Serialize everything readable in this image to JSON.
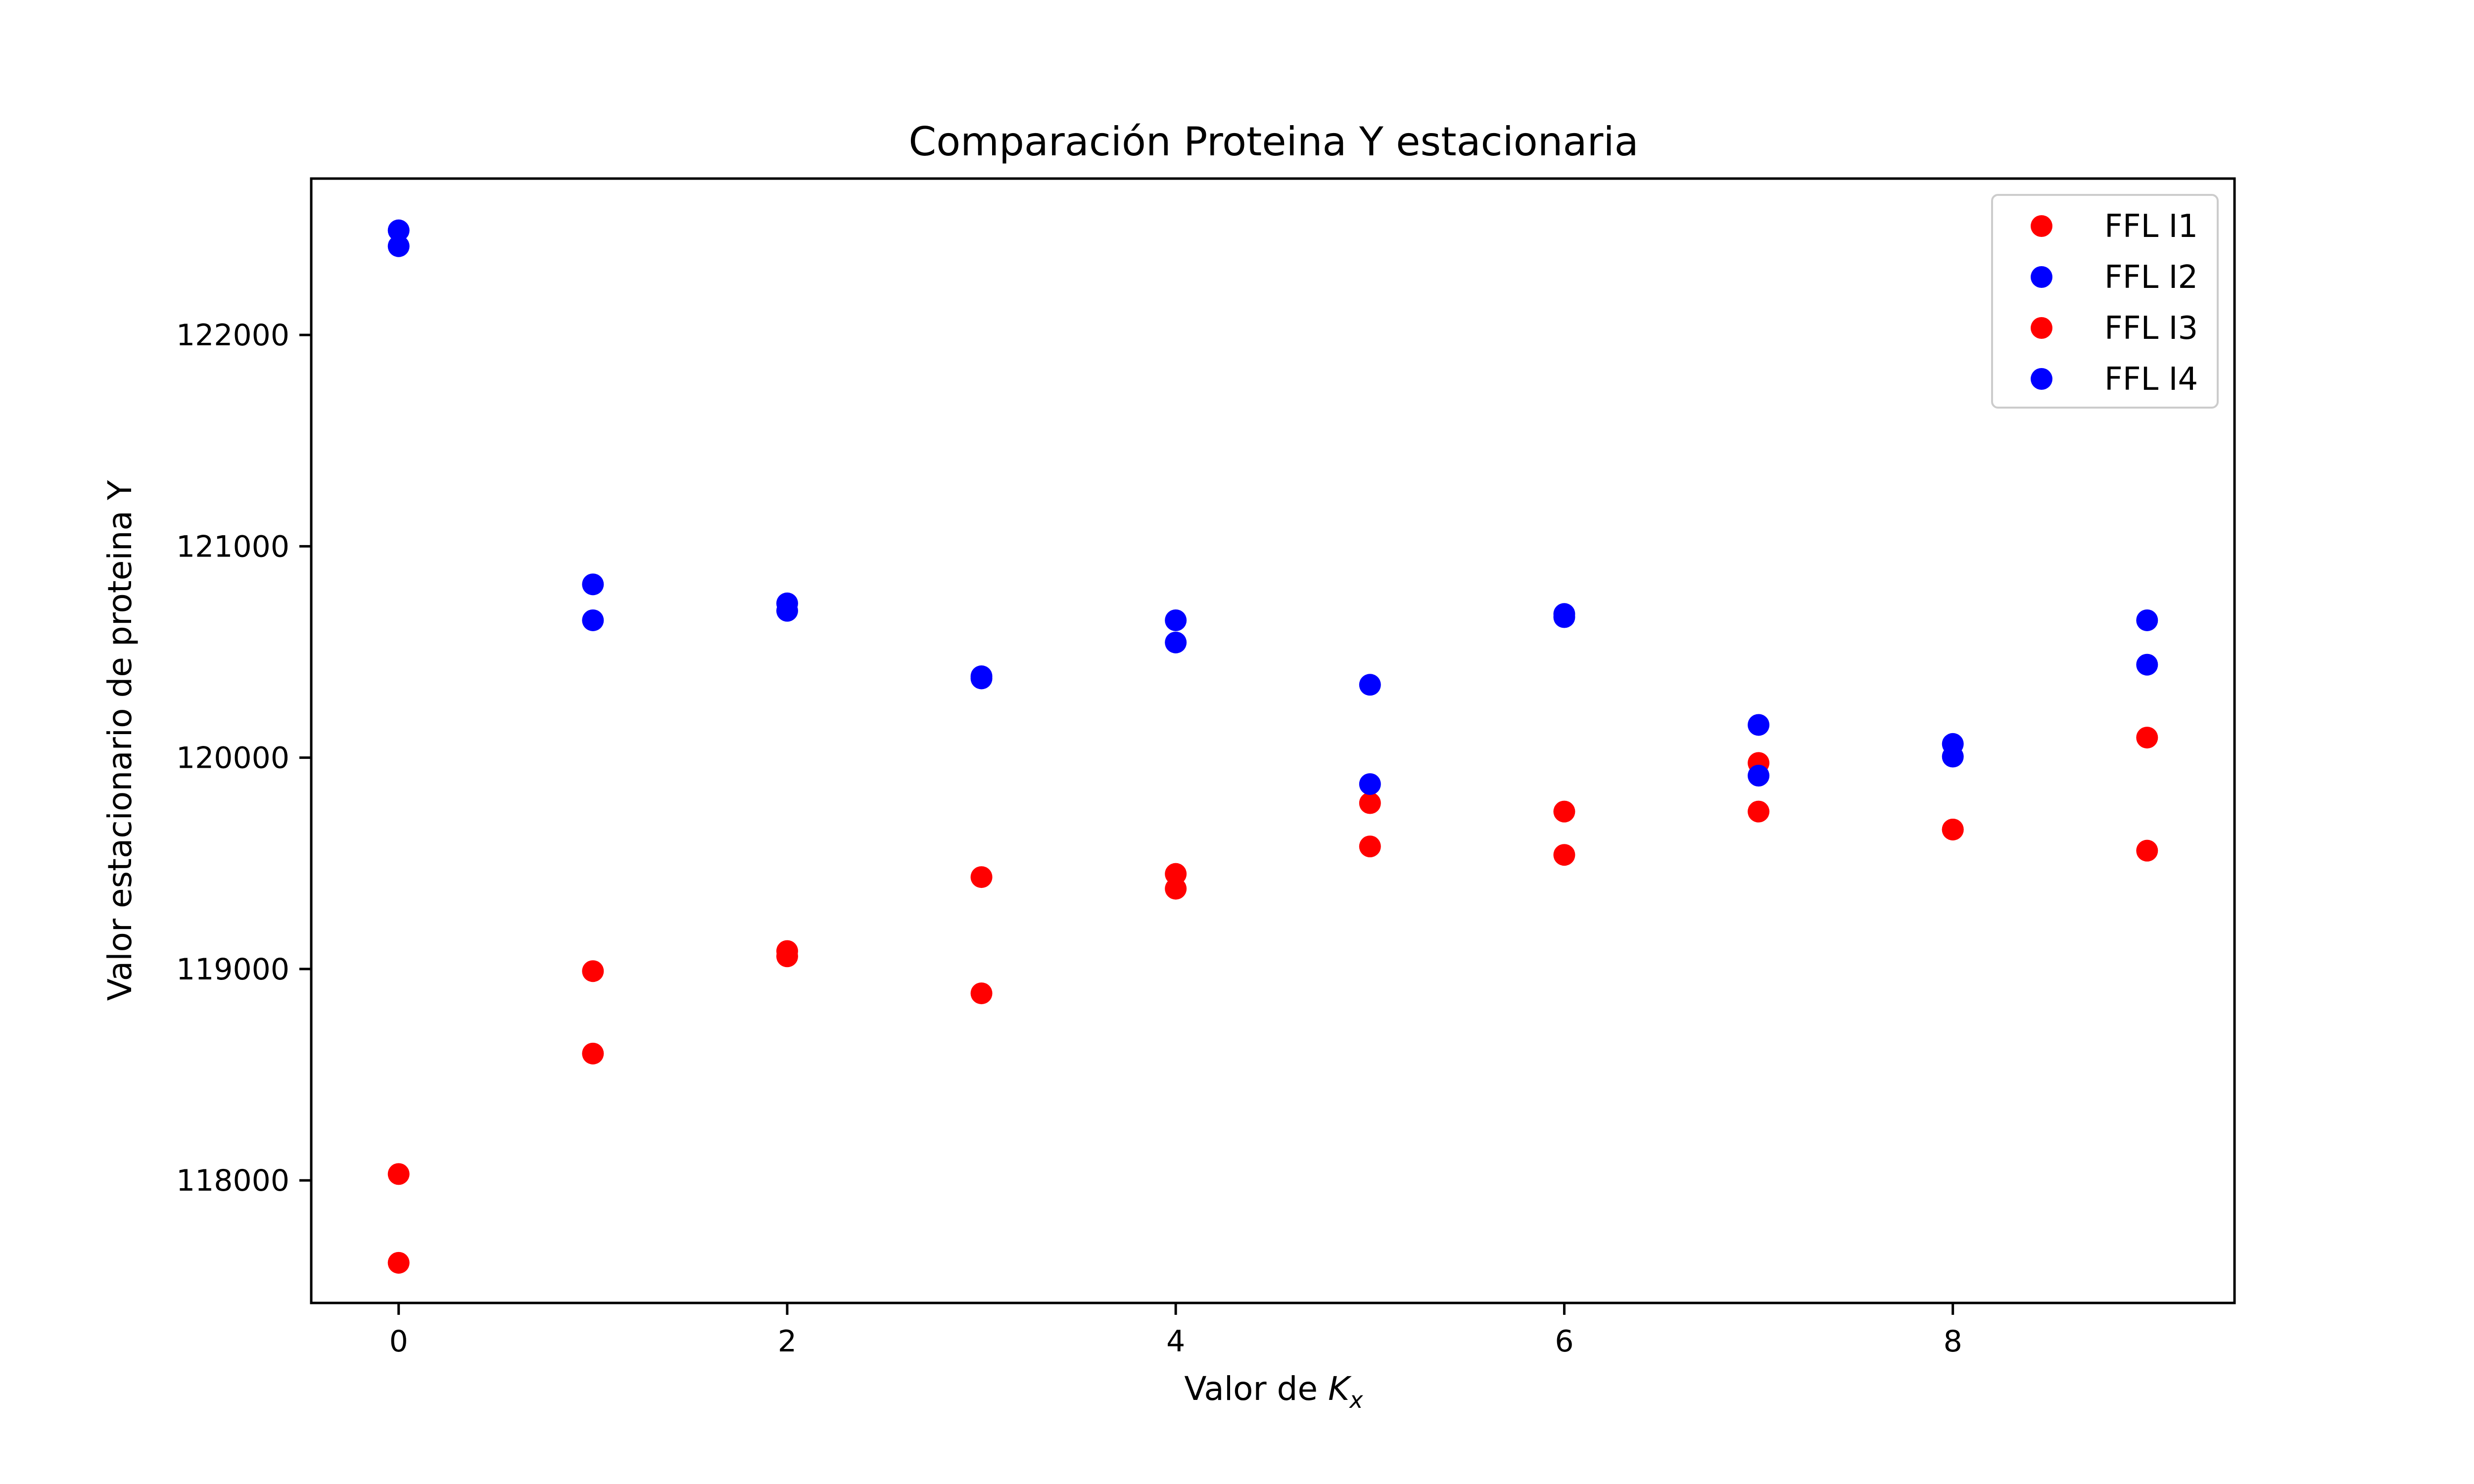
{
  "chart_data": {
    "type": "scatter",
    "title": "Comparación Proteina Y estacionaria",
    "xlabel_prefix": "Valor de ",
    "xlabel_var": "K",
    "xlabel_sub": "x",
    "ylabel": "Valor estacionario de proteina Y",
    "xlim": [
      -0.45,
      9.45
    ],
    "ylim": [
      117420,
      122740
    ],
    "xticks": [
      0,
      2,
      4,
      6,
      8
    ],
    "xtick_labels": [
      "0",
      "2",
      "4",
      "6",
      "8"
    ],
    "yticks": [
      118000,
      119000,
      120000,
      121000,
      122000
    ],
    "ytick_labels": [
      "118000",
      "119000",
      "120000",
      "121000",
      "122000"
    ],
    "grid": false,
    "legend_position": "top-right",
    "series": [
      {
        "name": "FFL I1",
        "color": "#ff0000",
        "points": [
          [
            0,
            118030
          ],
          [
            1,
            118990
          ],
          [
            2,
            119060
          ],
          [
            3,
            119435
          ],
          [
            4,
            119380
          ],
          [
            5,
            119785
          ],
          [
            6,
            119540
          ],
          [
            7,
            119745
          ],
          [
            8,
            119660
          ],
          [
            9,
            120095
          ]
        ]
      },
      {
        "name": "FFL I2",
        "color": "#0000ff",
        "points": [
          [
            0,
            122495
          ],
          [
            1,
            120820
          ],
          [
            2,
            120730
          ],
          [
            3,
            120385
          ],
          [
            4,
            120545
          ],
          [
            5,
            120345
          ],
          [
            6,
            120680
          ],
          [
            7,
            120155
          ],
          [
            8,
            120005
          ],
          [
            9,
            120650
          ]
        ]
      },
      {
        "name": "FFL I3",
        "color": "#ff0000",
        "points": [
          [
            0,
            117610
          ],
          [
            1,
            118600
          ],
          [
            2,
            119085
          ],
          [
            3,
            118885
          ],
          [
            4,
            119450
          ],
          [
            5,
            119580
          ],
          [
            6,
            119745
          ],
          [
            7,
            119975
          ],
          [
            8,
            119660
          ],
          [
            9,
            119560
          ]
        ]
      },
      {
        "name": "FFL I4",
        "color": "#0000ff",
        "points": [
          [
            0,
            122420
          ],
          [
            1,
            120650
          ],
          [
            2,
            120695
          ],
          [
            3,
            120375
          ],
          [
            4,
            120650
          ],
          [
            5,
            119875
          ],
          [
            6,
            120665
          ],
          [
            7,
            119915
          ],
          [
            8,
            120065
          ],
          [
            9,
            120440
          ]
        ]
      }
    ]
  }
}
